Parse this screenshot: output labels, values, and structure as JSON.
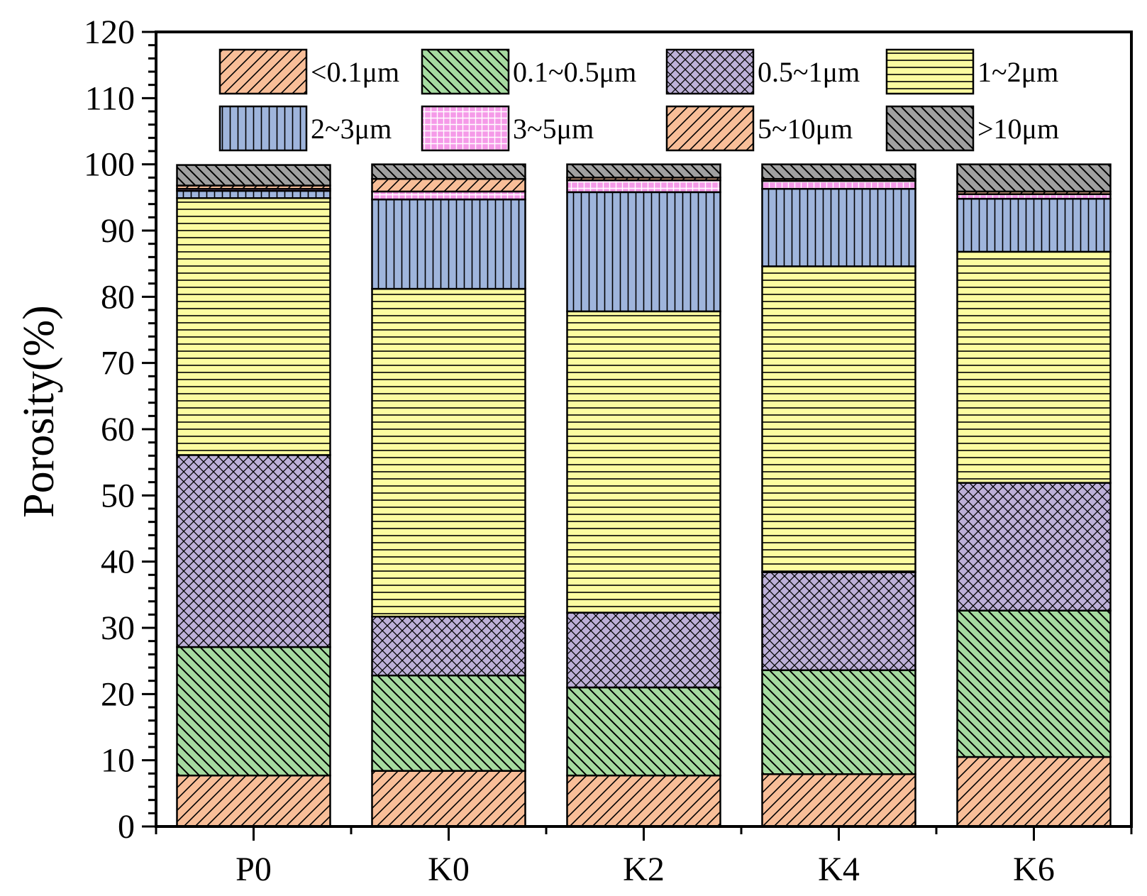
{
  "chart_data": {
    "type": "bar",
    "stacked": true,
    "title": "",
    "xlabel": "",
    "ylabel": "Porosity(%)",
    "ylim": [
      0,
      120
    ],
    "yticks": [
      0,
      10,
      20,
      30,
      40,
      50,
      60,
      70,
      80,
      90,
      100,
      110,
      120
    ],
    "categories": [
      "P0",
      "K0",
      "K2",
      "K4",
      "K6"
    ],
    "legend_position": "top",
    "series": [
      {
        "name": "<0.1μm",
        "color": "#f8be98",
        "pattern": "diag-up",
        "values": [
          7.7,
          8.4,
          7.7,
          7.9,
          10.5
        ]
      },
      {
        "name": "0.1~0.5μm",
        "color": "#a6dba0",
        "pattern": "diag-down",
        "values": [
          19.4,
          14.4,
          13.3,
          15.7,
          22.1
        ]
      },
      {
        "name": "0.5~1μm",
        "color": "#bdb0d8",
        "pattern": "crosshatch",
        "values": [
          29.0,
          8.9,
          11.3,
          14.8,
          19.3
        ]
      },
      {
        "name": "1~2μm",
        "color": "#fcfca0",
        "pattern": "horizontal",
        "values": [
          38.8,
          49.5,
          45.5,
          46.2,
          34.9
        ]
      },
      {
        "name": "2~3μm",
        "color": "#9fb5dc",
        "pattern": "vertical",
        "values": [
          1.1,
          13.5,
          18.0,
          11.7,
          8.0
        ]
      },
      {
        "name": "3~5μm",
        "color": "#f59ae8",
        "pattern": "grid",
        "values": [
          0.3,
          1.2,
          1.8,
          1.2,
          0.7
        ]
      },
      {
        "name": "5~10μm",
        "color": "#f8be98",
        "pattern": "diag-up",
        "values": [
          0.5,
          1.9,
          0.4,
          0.3,
          0.4
        ]
      },
      {
        "name": ">10μm",
        "color": "#a0a0a0",
        "pattern": "diag-down",
        "values": [
          3.1,
          2.2,
          2.0,
          2.2,
          4.1
        ]
      }
    ]
  }
}
